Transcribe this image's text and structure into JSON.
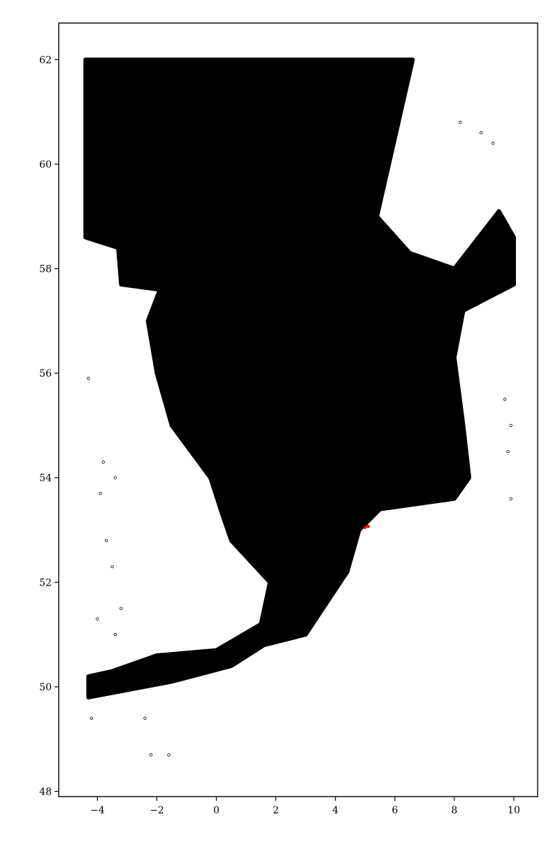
{
  "chart_data": {
    "type": "scatter",
    "title": "",
    "xlabel": "",
    "ylabel": "",
    "xlim": [
      -5.3,
      10.8
    ],
    "ylim": [
      47.9,
      62.7
    ],
    "xticks": [
      -4,
      -2,
      0,
      2,
      4,
      6,
      8,
      10
    ],
    "yticks": [
      48,
      50,
      52,
      54,
      56,
      58,
      60,
      62
    ],
    "xtick_labels": [
      "−4",
      "−2",
      "0",
      "2",
      "4",
      "6",
      "8",
      "10"
    ],
    "ytick_labels": [
      "48",
      "50",
      "52",
      "54",
      "56",
      "58",
      "60",
      "62"
    ],
    "grid": false,
    "legend": "none",
    "series": [
      {
        "marker_color": "#000000",
        "marker_fill": "#ffffff",
        "coverage_polygon_lon_lat": [
          [
            -4.4,
            62.0
          ],
          [
            6.6,
            62.0
          ],
          [
            6.0,
            60.5
          ],
          [
            5.4,
            59.0
          ],
          [
            6.5,
            58.3
          ],
          [
            8.0,
            58.0
          ],
          [
            9.5,
            59.1
          ],
          [
            10.0,
            58.6
          ],
          [
            10.0,
            57.7
          ],
          [
            8.3,
            57.2
          ],
          [
            8.0,
            56.3
          ],
          [
            8.3,
            55.0
          ],
          [
            8.5,
            54.0
          ],
          [
            8.0,
            53.6
          ],
          [
            5.5,
            53.4
          ],
          [
            4.8,
            53.0
          ],
          [
            4.4,
            52.2
          ],
          [
            3.7,
            51.6
          ],
          [
            3.0,
            51.0
          ],
          [
            1.6,
            50.8
          ],
          [
            0.5,
            50.4
          ],
          [
            -1.5,
            50.1
          ],
          [
            -4.3,
            49.8
          ],
          [
            -4.3,
            50.2
          ],
          [
            -3.5,
            50.3
          ],
          [
            -2.0,
            50.6
          ],
          [
            0.0,
            50.7
          ],
          [
            1.5,
            51.2
          ],
          [
            1.8,
            52.0
          ],
          [
            0.5,
            52.8
          ],
          [
            0.2,
            53.3
          ],
          [
            -0.2,
            54.0
          ],
          [
            -1.5,
            55.0
          ],
          [
            -2.0,
            56.0
          ],
          [
            -2.3,
            57.0
          ],
          [
            -1.9,
            57.6
          ],
          [
            -3.2,
            57.7
          ],
          [
            -3.3,
            58.4
          ],
          [
            -4.4,
            58.6
          ]
        ],
        "outlier_points": [
          [
            9.9,
            55.0
          ],
          [
            9.8,
            54.5
          ],
          [
            9.7,
            55.5
          ],
          [
            9.9,
            53.6
          ],
          [
            -4.3,
            55.9
          ],
          [
            -3.5,
            52.3
          ],
          [
            -4.0,
            51.3
          ],
          [
            -3.4,
            51.0
          ],
          [
            -3.2,
            51.5
          ],
          [
            8.2,
            60.8
          ],
          [
            8.9,
            60.6
          ],
          [
            9.3,
            60.4
          ],
          [
            -3.8,
            54.3
          ],
          [
            -3.4,
            54.0
          ],
          [
            -3.9,
            53.7
          ],
          [
            -3.7,
            52.8
          ],
          [
            -4.2,
            49.4
          ],
          [
            -2.4,
            49.4
          ],
          [
            -1.6,
            48.7
          ],
          [
            -2.2,
            48.7
          ]
        ]
      },
      {
        "marker_color": "#e00000",
        "points": [
          [
            5.0,
            53.05
          ],
          [
            5.1,
            53.07
          ]
        ]
      }
    ]
  }
}
